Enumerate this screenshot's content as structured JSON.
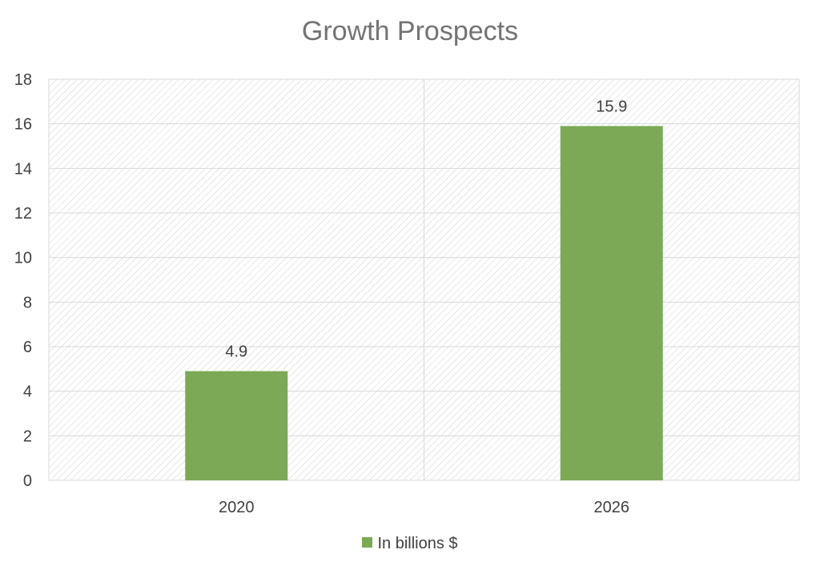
{
  "chart_data": {
    "type": "bar",
    "title": "Growth Prospects",
    "categories": [
      "2020",
      "2026"
    ],
    "series": [
      {
        "name": "In billions $",
        "values": [
          4.9,
          15.9
        ],
        "color": "#7ca956"
      }
    ],
    "data_labels": [
      "4.9",
      "15.9"
    ],
    "y_ticks": [
      "0",
      "2",
      "4",
      "6",
      "8",
      "10",
      "12",
      "14",
      "16",
      "18"
    ],
    "ylim": [
      0,
      18
    ],
    "xlabel": "",
    "ylabel": "",
    "grid": true,
    "legend_position": "bottom",
    "plot_fill": "diagonal-hatch",
    "colors": {
      "bar": "#7ca956",
      "grid": "#d9d9d9",
      "hatch": "#d6d6d6",
      "text": "#404040",
      "title": "#737373"
    }
  }
}
